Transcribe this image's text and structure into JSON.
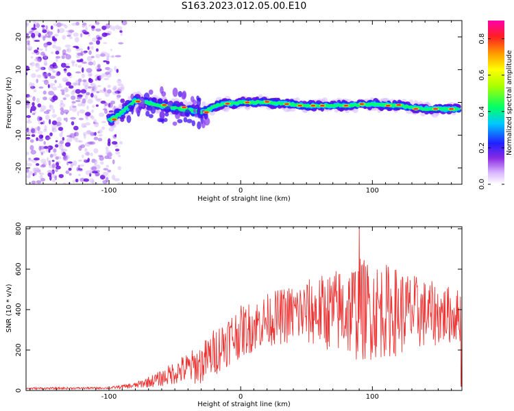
{
  "title": "S163.2023.012.05.00.E10",
  "chart_data": [
    {
      "type": "heatmap",
      "name": "spectrogram",
      "xlabel": "Height of straight line (km)",
      "ylabel": "Frequency (Hz)",
      "xlim": [
        -163,
        168
      ],
      "ylim": [
        -25,
        25
      ],
      "xticks": [
        -100,
        0,
        100
      ],
      "yticks": [
        -20,
        -10,
        0,
        10,
        20
      ],
      "colorbar": {
        "label": "Normalized spectral amplitude",
        "range": [
          0.0,
          0.9
        ],
        "ticks": [
          "0.0",
          "0.2",
          "0.4",
          "0.6",
          "0.8"
        ]
      },
      "ridge": [
        {
          "x": -100,
          "y": -5.5
        },
        {
          "x": -90,
          "y": -3
        },
        {
          "x": -80,
          "y": 0.5
        },
        {
          "x": -60,
          "y": -1
        },
        {
          "x": -45,
          "y": -2
        },
        {
          "x": -30,
          "y": -3
        },
        {
          "x": -15,
          "y": -0.5
        },
        {
          "x": 0,
          "y": 0
        },
        {
          "x": 20,
          "y": 0
        },
        {
          "x": 50,
          "y": -1
        },
        {
          "x": 80,
          "y": -1
        },
        {
          "x": 100,
          "y": -0.5
        },
        {
          "x": 120,
          "y": -1
        },
        {
          "x": 140,
          "y": -2
        },
        {
          "x": 165,
          "y": -2
        }
      ],
      "grid": false
    },
    {
      "type": "line",
      "name": "snr",
      "xlabel": "Height of straight line (km)",
      "ylabel": "SNR (10 * v/v)",
      "xlim": [
        -163,
        168
      ],
      "ylim": [
        0,
        810
      ],
      "xticks": [
        -100,
        0,
        100
      ],
      "yticks": [
        0,
        200,
        400,
        600,
        800
      ],
      "color": "#ee3333",
      "envelope": {
        "x": [
          -163,
          -100,
          -80,
          -60,
          -50,
          -40,
          -30,
          -20,
          -10,
          0,
          20,
          40,
          60,
          80,
          90,
          100,
          120,
          140,
          168
        ],
        "mean": [
          10,
          12,
          25,
          60,
          90,
          110,
          130,
          190,
          250,
          290,
          350,
          380,
          390,
          395,
          400,
          400,
          390,
          380,
          370
        ],
        "amp": [
          5,
          5,
          15,
          40,
          60,
          80,
          100,
          120,
          130,
          130,
          130,
          150,
          180,
          230,
          260,
          250,
          220,
          170,
          130
        ]
      },
      "grid": false
    }
  ]
}
